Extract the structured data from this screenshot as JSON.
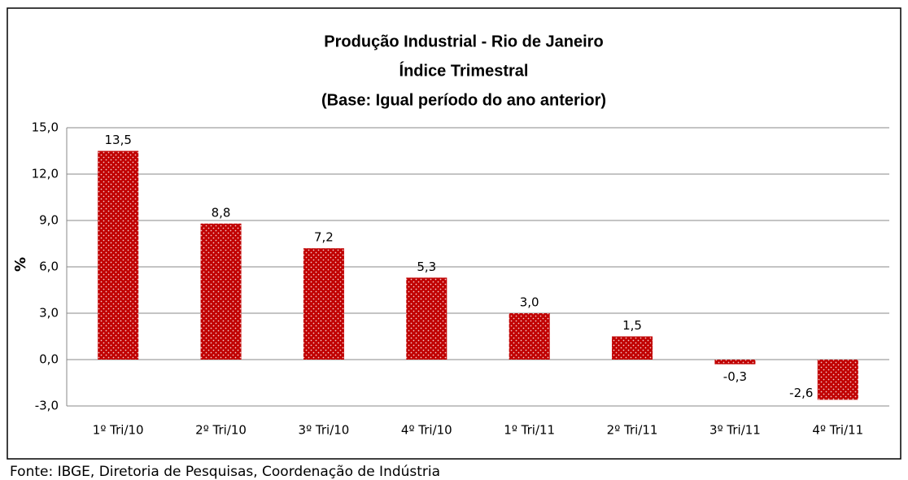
{
  "chart_data": {
    "type": "bar",
    "title": [
      "Produção Industrial - Rio de Janeiro",
      "Índice Trimestral",
      "(Base: Igual período do ano anterior)"
    ],
    "y_label": "%",
    "categories": [
      "1º Tri/10",
      "2º Tri/10",
      "3º Tri/10",
      "4º Tri/10",
      "1º Tri/11",
      "2º Tri/11",
      "3º Tri/11",
      "4º Tri/11"
    ],
    "values": [
      13.5,
      8.8,
      7.2,
      5.3,
      3.0,
      1.5,
      -0.3,
      -2.6
    ],
    "value_labels": [
      "13,5",
      "8,8",
      "7,2",
      "5,3",
      "3,0",
      "1,5",
      "-0,3",
      "-2,6"
    ],
    "color": "#c00000",
    "ylim": [
      -3,
      15
    ],
    "yticks": [
      {
        "value": -3,
        "label": "-3,0"
      },
      {
        "value": 0,
        "label": "0,0"
      },
      {
        "value": 3,
        "label": "3,0"
      },
      {
        "value": 6,
        "label": "6,0"
      },
      {
        "value": 9,
        "label": "9,0"
      },
      {
        "value": 12,
        "label": "12,0"
      },
      {
        "value": 15,
        "label": "15,0"
      }
    ],
    "grid": true,
    "source": "Fonte: IBGE, Diretoria de Pesquisas, Coordenação de Indústria"
  }
}
